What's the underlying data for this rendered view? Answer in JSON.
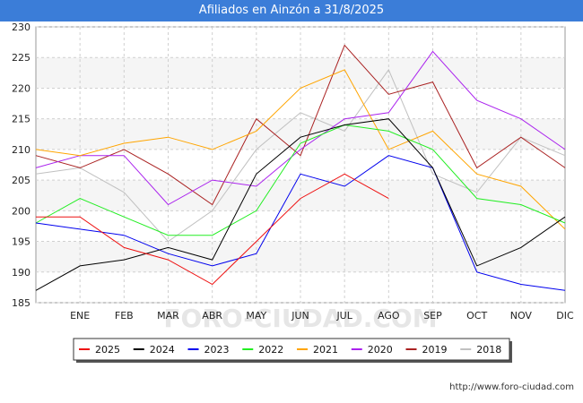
{
  "chart_data": {
    "type": "line",
    "title": "Afiliados en Ainzón a 31/8/2025",
    "categories": [
      "",
      "ENE",
      "FEB",
      "MAR",
      "ABR",
      "MAY",
      "JUN",
      "JUL",
      "AGO",
      "SEP",
      "OCT",
      "NOV",
      "DIC"
    ],
    "ylim": [
      185,
      230
    ],
    "yticks": [
      185,
      190,
      195,
      200,
      205,
      210,
      215,
      220,
      225,
      230
    ],
    "grid": true,
    "legend_position": "bottom",
    "watermark": "FORO-CIUDAD.COM",
    "series": [
      {
        "name": "2025",
        "color": "#ee1111",
        "values": [
          199,
          199,
          194,
          192,
          188,
          195,
          202,
          206,
          202,
          null,
          null,
          null,
          null
        ]
      },
      {
        "name": "2024",
        "color": "#000000",
        "values": [
          187,
          191,
          192,
          194,
          192,
          206,
          212,
          214,
          215,
          207,
          191,
          194,
          199
        ]
      },
      {
        "name": "2023",
        "color": "#0000ee",
        "values": [
          198,
          197,
          196,
          193,
          191,
          193,
          206,
          204,
          209,
          207,
          190,
          188,
          187
        ]
      },
      {
        "name": "2022",
        "color": "#22ee22",
        "values": [
          198,
          202,
          199,
          196,
          196,
          200,
          211,
          214,
          213,
          210,
          202,
          201,
          198
        ]
      },
      {
        "name": "2021",
        "color": "#ffa500",
        "values": [
          210,
          209,
          211,
          212,
          210,
          213,
          220,
          223,
          210,
          213,
          206,
          204,
          197
        ]
      },
      {
        "name": "2020",
        "color": "#aa22ee",
        "values": [
          207,
          209,
          209,
          201,
          205,
          204,
          210,
          215,
          216,
          226,
          218,
          215,
          210
        ]
      },
      {
        "name": "2019",
        "color": "#aa2222",
        "values": [
          209,
          207,
          210,
          206,
          201,
          215,
          209,
          227,
          219,
          221,
          207,
          212,
          207
        ]
      },
      {
        "name": "2018",
        "color": "#c0c0c0",
        "values": [
          206,
          207,
          203,
          195,
          200,
          210,
          216,
          213,
          223,
          206,
          203,
          212,
          209
        ]
      }
    ]
  },
  "source": "http://www.foro-ciudad.com"
}
